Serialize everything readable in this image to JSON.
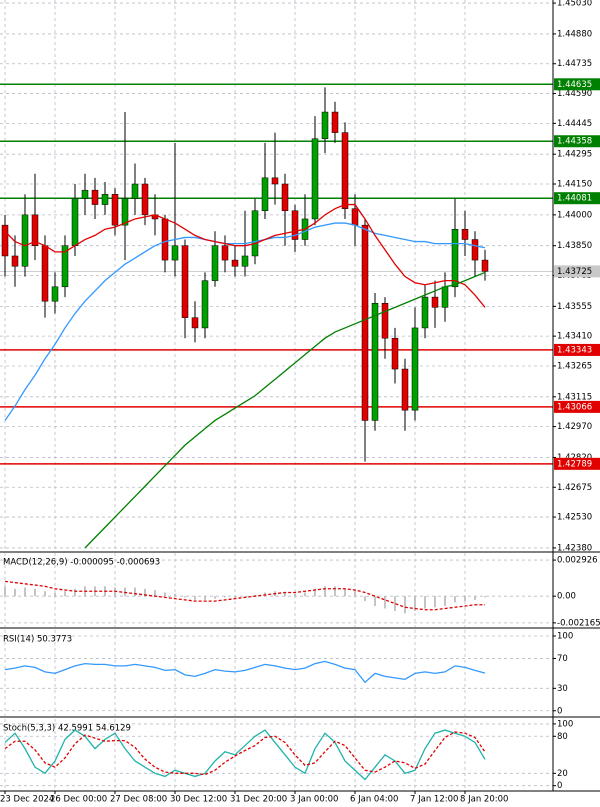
{
  "chart_data": [
    {
      "type": "candlestick",
      "categories": [
        "23 Dec 2024",
        null,
        null,
        null,
        null,
        "26 Dec 00:00",
        null,
        null,
        null,
        null,
        null,
        "27 Dec 08:00",
        null,
        null,
        null,
        null,
        null,
        "30 Dec 12:00",
        null,
        null,
        null,
        null,
        null,
        "31 Dec 20:00",
        null,
        null,
        null,
        null,
        null,
        "3 Jan 00:00",
        null,
        null,
        null,
        null,
        null,
        "6 Jan 04:00",
        null,
        null,
        null,
        null,
        null,
        "7 Jan 12:00",
        null,
        null,
        null,
        null,
        "8 Jan 20:00",
        null,
        null
      ],
      "open": [
        1.4395,
        1.438,
        1.4375,
        1.44,
        1.4385,
        1.4358,
        1.4365,
        1.4385,
        1.4408,
        1.4412,
        1.4405,
        1.441,
        1.4395,
        1.4408,
        1.4415,
        1.44,
        1.4398,
        1.4378,
        1.4385,
        1.435,
        1.4345,
        1.4368,
        1.4385,
        1.4378,
        1.4375,
        1.438,
        1.4402,
        1.4418,
        1.4415,
        1.4402,
        1.4388,
        1.4398,
        1.4437,
        1.445,
        1.444,
        1.4403,
        1.4395,
        1.43,
        1.4357,
        1.434,
        1.4325,
        1.4305,
        1.4345,
        1.436,
        1.4355,
        1.4365,
        1.4393,
        1.4388,
        1.4378
      ],
      "high": [
        1.44,
        1.439,
        1.441,
        1.442,
        1.439,
        1.4372,
        1.439,
        1.4415,
        1.442,
        1.4418,
        1.4416,
        1.4413,
        1.445,
        1.4425,
        1.4418,
        1.441,
        1.44,
        1.4435,
        1.4388,
        1.4358,
        1.4372,
        1.4392,
        1.439,
        1.4385,
        1.4402,
        1.4408,
        1.4435,
        1.444,
        1.442,
        1.4405,
        1.441,
        1.4448,
        1.4462,
        1.4455,
        1.4445,
        1.441,
        1.4398,
        1.4362,
        1.436,
        1.4345,
        1.433,
        1.4355,
        1.4366,
        1.4368,
        1.4372,
        1.4408,
        1.4402,
        1.4392,
        1.4383
      ],
      "low": [
        1.437,
        1.4365,
        1.437,
        1.4378,
        1.435,
        1.4352,
        1.436,
        1.438,
        1.44,
        1.4398,
        1.44,
        1.439,
        1.4378,
        1.44,
        1.4395,
        1.439,
        1.4372,
        1.437,
        1.434,
        1.4338,
        1.434,
        1.4365,
        1.4372,
        1.437,
        1.437,
        1.4376,
        1.4398,
        1.4405,
        1.4385,
        1.4382,
        1.4385,
        1.4395,
        1.443,
        1.4435,
        1.4398,
        1.4385,
        1.428,
        1.4295,
        1.433,
        1.4318,
        1.4295,
        1.43,
        1.434,
        1.4345,
        1.4348,
        1.436,
        1.438,
        1.437,
        1.4368
      ],
      "close": [
        1.438,
        1.4375,
        1.44,
        1.4385,
        1.4358,
        1.4365,
        1.4385,
        1.4408,
        1.4412,
        1.4405,
        1.441,
        1.4395,
        1.4408,
        1.4415,
        1.44,
        1.4398,
        1.4378,
        1.4385,
        1.435,
        1.4345,
        1.4368,
        1.4385,
        1.4378,
        1.4375,
        1.438,
        1.4402,
        1.4418,
        1.4415,
        1.4402,
        1.4388,
        1.4398,
        1.4437,
        1.445,
        1.444,
        1.4403,
        1.4395,
        1.43,
        1.4357,
        1.434,
        1.4325,
        1.4305,
        1.4345,
        1.436,
        1.4355,
        1.4365,
        1.4393,
        1.4388,
        1.4378,
        1.43725
      ],
      "up_color": "#00a000",
      "down_color": "#e00000",
      "series": [
        {
          "type": "line",
          "color": "#3399ff",
          "values": [
            1.43,
            1.4307,
            1.4315,
            1.4322,
            1.433,
            1.4337,
            1.4345,
            1.4352,
            1.4358,
            1.4363,
            1.4368,
            1.4372,
            1.4376,
            1.4379,
            1.4382,
            1.4385,
            1.4387,
            1.4388,
            1.4389,
            1.4389,
            1.4388,
            1.4387,
            1.4386,
            1.4386,
            1.4386,
            1.4387,
            1.4388,
            1.4389,
            1.4389,
            1.439,
            1.4392,
            1.4394,
            1.4395,
            1.4396,
            1.4396,
            1.4395,
            1.4393,
            1.4391,
            1.439,
            1.4389,
            1.4388,
            1.4387,
            1.4387,
            1.4386,
            1.4386,
            1.4386,
            1.4386,
            1.4385,
            1.4384
          ]
        },
        {
          "type": "line",
          "color": "#e00000",
          "values": [
            1.4392,
            1.4387,
            1.4385,
            1.4387,
            1.4385,
            1.4382,
            1.4382,
            1.4385,
            1.4388,
            1.439,
            1.4393,
            1.4394,
            1.4396,
            1.4398,
            1.4399,
            1.44,
            1.4398,
            1.4396,
            1.4393,
            1.439,
            1.4388,
            1.4387,
            1.4386,
            1.4385,
            1.4385,
            1.4386,
            1.4388,
            1.439,
            1.4391,
            1.4392,
            1.4393,
            1.4396,
            1.44,
            1.4403,
            1.4405,
            1.4405,
            1.4398,
            1.439,
            1.4383,
            1.4376,
            1.437,
            1.4367,
            1.4366,
            1.4367,
            1.4368,
            1.4368,
            1.4366,
            1.4361,
            1.4355
          ]
        },
        {
          "type": "line",
          "color": "#008000",
          "values": [
            null,
            null,
            null,
            null,
            null,
            null,
            null,
            null,
            1.4238,
            1.4243,
            1.4248,
            1.4253,
            1.4258,
            1.4263,
            1.4268,
            1.4273,
            1.4278,
            1.4283,
            1.4288,
            1.4292,
            1.4296,
            1.43,
            1.4303,
            1.4306,
            1.4309,
            1.4312,
            1.4316,
            1.432,
            1.4324,
            1.4328,
            1.4332,
            1.4336,
            1.434,
            1.4343,
            1.4345,
            1.4347,
            1.4349,
            1.4351,
            1.4353,
            1.4355,
            1.4357,
            1.4359,
            1.4361,
            1.4363,
            1.4365,
            1.4366,
            1.4368,
            1.437,
            1.4372
          ]
        }
      ],
      "levels": [
        {
          "value": 1.44635,
          "color": "#008000"
        },
        {
          "value": 1.44358,
          "color": "#008000"
        },
        {
          "value": 1.44081,
          "color": "#008000"
        },
        {
          "value": 1.43343,
          "color": "#e00000"
        },
        {
          "value": 1.43066,
          "color": "#e00000"
        },
        {
          "value": 1.42789,
          "color": "#e00000"
        }
      ],
      "last_price": 1.43725,
      "ylim": [
        1.42365,
        1.45045
      ],
      "yticks": [
        {
          "value": 1.4503,
          "label": "1.45030"
        },
        {
          "value": 1.4488,
          "label": "1.44880"
        },
        1.44735,
        {
          "value": 1.4459,
          "label": "1.44590"
        },
        1.44445,
        1.44295,
        {
          "value": 1.4415,
          "label": "1.44150"
        },
        {
          "value": 1.44,
          "label": "1.44000"
        },
        {
          "value": 1.4385,
          "label": "1.43850"
        },
        1.43705,
        1.43555,
        {
          "value": 1.4341,
          "label": "1.43410"
        },
        1.43265,
        1.43115,
        {
          "value": 1.4297,
          "label": "1.42970"
        },
        {
          "value": 1.4282,
          "label": "1.42820"
        },
        1.42675,
        {
          "value": 1.4253,
          "label": "1.42530"
        },
        {
          "value": 1.4238,
          "label": "1.42380"
        }
      ],
      "grid": true
    },
    {
      "type": "bar",
      "title": "MACD(12,26,9) -0.000095 -0.000693",
      "series": [
        {
          "type": "bar",
          "color": "#b0b0b0",
          "values": [
            0.0008,
            0.0006,
            0.0007,
            0.0006,
            0.0004,
            0.0003,
            0.0004,
            0.0006,
            0.0008,
            0.0008,
            0.0008,
            0.0007,
            0.0007,
            0.0007,
            0.0006,
            0.0005,
            0.0003,
            0.0002,
            -0.0001,
            -0.0003,
            -0.0003,
            -0.0002,
            -0.0001,
            -0.0001,
            -0.0001,
            0.0001,
            0.0003,
            0.0004,
            0.0003,
            0.0002,
            0.0003,
            0.0006,
            0.0008,
            0.0008,
            0.0006,
            0.0005,
            -0.0004,
            -0.0008,
            -0.001,
            -0.0012,
            -0.0014,
            -0.0012,
            -0.001,
            -0.0009,
            -0.0008,
            -0.0005,
            -0.0004,
            -0.0003,
            -9.5e-05
          ]
        },
        {
          "type": "line",
          "color": "#e00000",
          "dashed": true,
          "values": [
            0.0012,
            0.0011,
            0.001,
            0.0009,
            0.0008,
            0.0006,
            0.0005,
            0.0004,
            0.0004,
            0.0004,
            0.0004,
            0.0004,
            0.0003,
            0.0002,
            0.0001,
            0,
            -0.0001,
            -0.0002,
            -0.0003,
            -0.0004,
            -0.0004,
            -0.0004,
            -0.0003,
            -0.0002,
            -0.0001,
            0,
            0.0001,
            0.0002,
            0.0003,
            0.0003,
            0.0004,
            0.0005,
            0.0006,
            0.0006,
            0.0006,
            0.0005,
            0.0003,
            0,
            -0.0003,
            -0.0006,
            -0.0009,
            -0.001,
            -0.0011,
            -0.0011,
            -0.001,
            -0.0009,
            -0.0008,
            -0.0007,
            -0.000693
          ]
        }
      ],
      "ylim": [
        -0.0025,
        0.0035
      ],
      "yticks": [
        0.002926,
        {
          "value": 0,
          "label": "0.00"
        },
        -0.002165
      ],
      "grid": true
    },
    {
      "type": "line",
      "title": "RSI(14) 50.3773",
      "series": [
        {
          "type": "line",
          "color": "#3399ff",
          "values": [
            55,
            57,
            60,
            58,
            52,
            50,
            55,
            60,
            63,
            62,
            62,
            60,
            60,
            62,
            60,
            58,
            54,
            55,
            48,
            46,
            50,
            55,
            53,
            52,
            54,
            58,
            62,
            60,
            57,
            55,
            57,
            63,
            66,
            62,
            57,
            55,
            38,
            50,
            46,
            44,
            42,
            50,
            52,
            50,
            52,
            60,
            58,
            54,
            50.3773
          ]
        }
      ],
      "ylim": [
        -7,
        108
      ],
      "yticks": [
        100,
        70,
        30,
        0
      ],
      "grid": true
    },
    {
      "type": "line",
      "title": "Stoch(5,3,3) 42.5991 54.6129",
      "series": [
        {
          "type": "line",
          "color": "#20b2aa",
          "values": [
            70,
            85,
            60,
            30,
            20,
            40,
            75,
            90,
            80,
            60,
            75,
            85,
            60,
            40,
            30,
            20,
            15,
            25,
            20,
            15,
            20,
            40,
            55,
            50,
            65,
            80,
            90,
            70,
            50,
            30,
            20,
            60,
            85,
            70,
            40,
            25,
            10,
            30,
            50,
            40,
            20,
            25,
            60,
            85,
            90,
            85,
            80,
            70,
            42.5991
          ]
        },
        {
          "type": "line",
          "color": "#e00000",
          "dashed": true,
          "values": [
            60,
            72,
            72,
            58,
            37,
            30,
            45,
            68,
            82,
            77,
            72,
            73,
            73,
            62,
            43,
            30,
            22,
            20,
            20,
            20,
            18,
            25,
            38,
            48,
            57,
            65,
            78,
            80,
            70,
            50,
            33,
            37,
            55,
            72,
            65,
            45,
            25,
            22,
            30,
            40,
            37,
            28,
            35,
            57,
            78,
            87,
            85,
            78,
            54.6129
          ]
        }
      ],
      "ylim": [
        -7,
        108
      ],
      "yticks": [
        100,
        80,
        20,
        0
      ],
      "grid": true
    }
  ]
}
